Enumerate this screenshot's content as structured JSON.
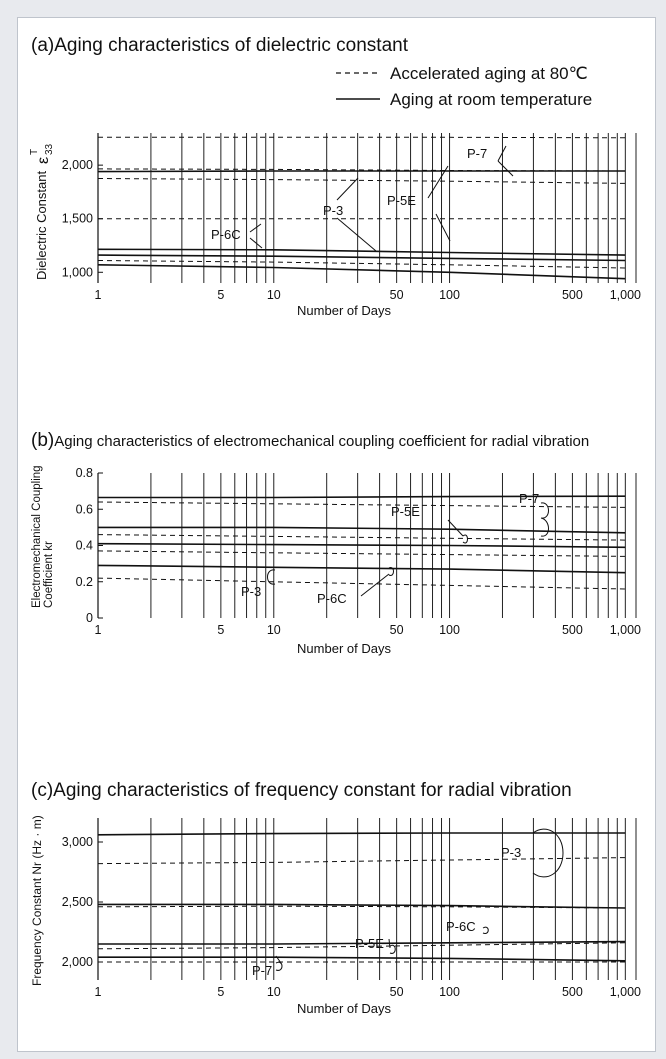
{
  "legend": {
    "dashed_label": "Accelerated aging at 80℃",
    "solid_label": "Aging at room temperature"
  },
  "chart_data": [
    {
      "type": "line",
      "title": "(a)Aging characteristics of dielectric constant",
      "xlabel": "Number of Days",
      "ylabel": "Dielectric Constant",
      "ylabel_symbol": "ε",
      "ylabel_sup": "T",
      "ylabel_sub": "33",
      "xscale": "log",
      "xlim": [
        1,
        1150
      ],
      "ylim": [
        900,
        2300
      ],
      "xticks": [
        1,
        5,
        10,
        50,
        100,
        500,
        1000
      ],
      "xtick_labels": [
        "1",
        "5",
        "10",
        "50",
        "100",
        "500",
        "1,000"
      ],
      "yticks": [
        1000,
        1500,
        2000
      ],
      "ytick_labels": [
        "1,000",
        "1,500",
        "2,000"
      ],
      "grid": true,
      "series": [
        {
          "name": "P-7",
          "style": "dashed",
          "x": [
            1,
            10,
            100,
            1000
          ],
          "y": [
            2260,
            2260,
            2260,
            2255
          ]
        },
        {
          "name": "P-7",
          "style": "solid",
          "x": [
            1,
            10,
            100,
            1000
          ],
          "y": [
            1940,
            1945,
            1945,
            1945
          ]
        },
        {
          "name": "P-5E",
          "style": "dashed",
          "x": [
            1,
            10,
            100,
            1000
          ],
          "y": [
            1965,
            1960,
            1950,
            1945
          ]
        },
        {
          "name": "P-5E",
          "style": "dashed",
          "x": [
            1,
            10,
            100,
            1000
          ],
          "y": [
            1875,
            1865,
            1850,
            1830
          ]
        },
        {
          "name": "P-3",
          "style": "dashed",
          "x": [
            1,
            10,
            100,
            1000
          ],
          "y": [
            1500,
            1500,
            1500,
            1500
          ]
        },
        {
          "name": "P-6C",
          "style": "solid",
          "x": [
            1,
            10,
            100,
            1000
          ],
          "y": [
            1215,
            1210,
            1185,
            1160
          ]
        },
        {
          "name": "P-5E",
          "style": "solid",
          "x": [
            1,
            10,
            100,
            1000
          ],
          "y": [
            1160,
            1150,
            1130,
            1110
          ]
        },
        {
          "name": "P-3",
          "style": "dashed",
          "x": [
            1,
            10,
            100,
            1000
          ],
          "y": [
            1110,
            1095,
            1070,
            1040
          ]
        },
        {
          "name": "P-3",
          "style": "solid",
          "x": [
            1,
            10,
            100,
            1000
          ],
          "y": [
            1070,
            1045,
            1000,
            940
          ]
        }
      ],
      "annotations": [
        "P-7",
        "P-3",
        "P-5E",
        "P-6C"
      ]
    },
    {
      "type": "line",
      "title_prefix": "(b)",
      "title": "Aging characteristics of electromechanical coupling coefficient for radial vibration",
      "xlabel": "Number of Days",
      "ylabel": "Electromechanical Coupling",
      "ylabel2": "Coefficient kr",
      "xscale": "log",
      "xlim": [
        1,
        1150
      ],
      "ylim": [
        0,
        0.8
      ],
      "xticks": [
        1,
        5,
        10,
        50,
        100,
        500,
        1000
      ],
      "xtick_labels": [
        "1",
        "5",
        "10",
        "50",
        "100",
        "500",
        "1,000"
      ],
      "yticks": [
        0,
        0.2,
        0.4,
        0.6,
        0.8
      ],
      "ytick_labels": [
        "0",
        "0.2",
        "0.4",
        "0.6",
        "0.8"
      ],
      "grid": true,
      "series": [
        {
          "name": "P-7",
          "style": "solid",
          "x": [
            1,
            10,
            100,
            1000
          ],
          "y": [
            0.665,
            0.665,
            0.67,
            0.672
          ]
        },
        {
          "name": "P-7",
          "style": "dashed",
          "x": [
            1,
            10,
            100,
            1000
          ],
          "y": [
            0.64,
            0.63,
            0.62,
            0.61
          ]
        },
        {
          "name": "P-5E",
          "style": "solid",
          "x": [
            1,
            10,
            100,
            1000
          ],
          "y": [
            0.5,
            0.5,
            0.49,
            0.47
          ]
        },
        {
          "name": "P-5E",
          "style": "dashed",
          "x": [
            1,
            10,
            100,
            1000
          ],
          "y": [
            0.46,
            0.45,
            0.44,
            0.43
          ]
        },
        {
          "name": "P-6C",
          "style": "solid",
          "x": [
            1,
            10,
            100,
            1000
          ],
          "y": [
            0.41,
            0.405,
            0.4,
            0.39
          ]
        },
        {
          "name": "P-6C",
          "style": "dashed",
          "x": [
            1,
            10,
            100,
            1000
          ],
          "y": [
            0.37,
            0.36,
            0.35,
            0.34
          ]
        },
        {
          "name": "P-3",
          "style": "solid",
          "x": [
            1,
            10,
            100,
            1000
          ],
          "y": [
            0.29,
            0.28,
            0.27,
            0.25
          ]
        },
        {
          "name": "P-3",
          "style": "dashed",
          "x": [
            1,
            10,
            100,
            1000
          ],
          "y": [
            0.22,
            0.2,
            0.18,
            0.16
          ]
        }
      ],
      "annotations": [
        "P-5E",
        "P-7",
        "P-3",
        "P-6C"
      ]
    },
    {
      "type": "line",
      "title": "(c)Aging characteristics of frequency constant for radial vibration",
      "xlabel": "Number of Days",
      "ylabel": "Frequency Constant Nr (Hz · m)",
      "xscale": "log",
      "xlim": [
        1,
        1150
      ],
      "ylim": [
        1850,
        3200
      ],
      "xticks": [
        1,
        5,
        10,
        50,
        100,
        500,
        1000
      ],
      "xtick_labels": [
        "1",
        "5",
        "10",
        "50",
        "100",
        "500",
        "1,000"
      ],
      "yticks": [
        2000,
        2500,
        3000
      ],
      "ytick_labels": [
        "2,000",
        "2,500",
        "3,000"
      ],
      "grid": true,
      "series": [
        {
          "name": "P-3",
          "style": "solid",
          "x": [
            1,
            10,
            100,
            1000
          ],
          "y": [
            3060,
            3070,
            3075,
            3075
          ]
        },
        {
          "name": "P-3",
          "style": "dashed",
          "x": [
            1,
            10,
            100,
            1000
          ],
          "y": [
            2820,
            2830,
            2850,
            2870
          ]
        },
        {
          "name": "P-6C",
          "style": "solid",
          "x": [
            1,
            10,
            100,
            1000
          ],
          "y": [
            2480,
            2480,
            2470,
            2450
          ]
        },
        {
          "name": "P-6C",
          "style": "dashed",
          "x": [
            1,
            10,
            100,
            1000
          ],
          "y": [
            2460,
            2465,
            2460,
            2450
          ]
        },
        {
          "name": "P-5E",
          "style": "solid",
          "x": [
            1,
            10,
            100,
            1000
          ],
          "y": [
            2150,
            2150,
            2160,
            2170
          ]
        },
        {
          "name": "P-5E",
          "style": "dashed",
          "x": [
            1,
            10,
            100,
            1000
          ],
          "y": [
            2110,
            2120,
            2140,
            2160
          ]
        },
        {
          "name": "P-7",
          "style": "solid",
          "x": [
            1,
            10,
            100,
            1000
          ],
          "y": [
            2040,
            2040,
            2030,
            2010
          ]
        },
        {
          "name": "P-7",
          "style": "dashed",
          "x": [
            1,
            10,
            100,
            1000
          ],
          "y": [
            2000,
            2000,
            2000,
            2000
          ]
        }
      ],
      "annotations": [
        "P-3",
        "P-6C",
        "P-5E",
        "P-7"
      ]
    }
  ]
}
